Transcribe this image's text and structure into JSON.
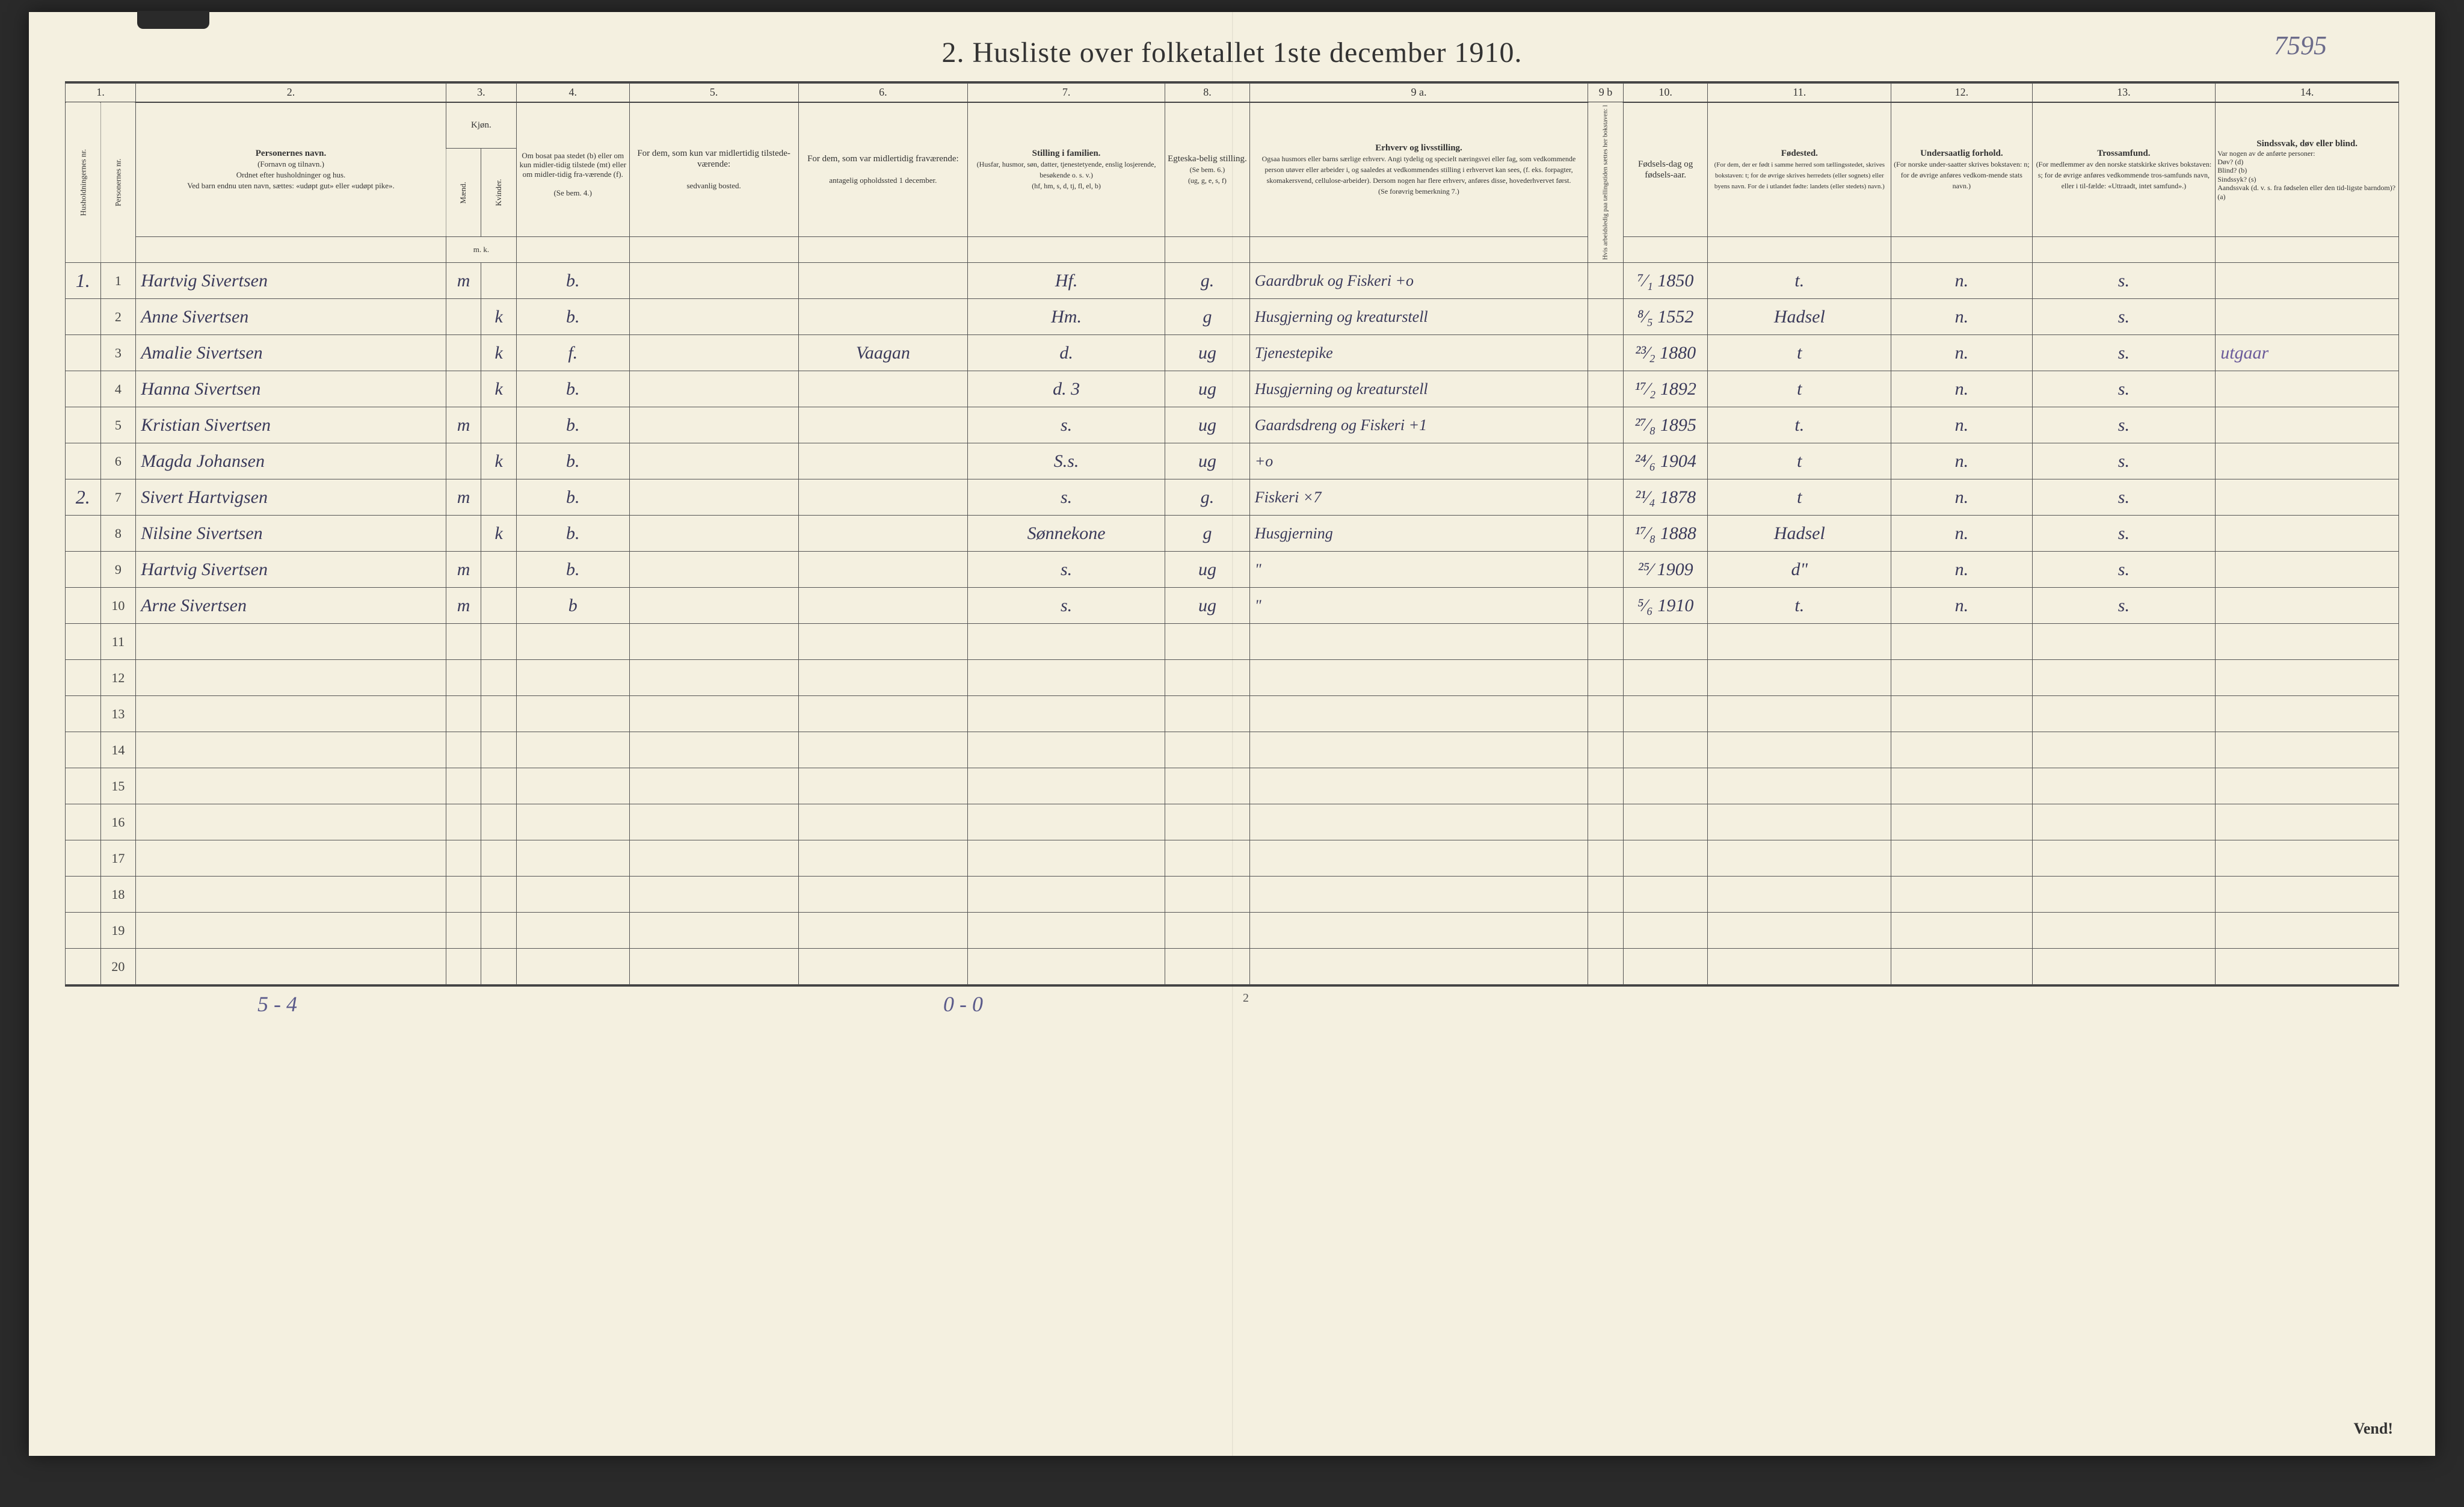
{
  "page": {
    "title": "2.  Husliste over folketallet 1ste december 1910.",
    "topright_note": "7595",
    "footer_left": "5 - 4",
    "footer_center": "0 - 0",
    "footer_pagenum": "2",
    "vend": "Vend!"
  },
  "colors": {
    "paper": "#f4f0e0",
    "ink": "#333333",
    "handwriting": "#3a3a5a",
    "pencil": "#6a5a9a",
    "border": "#555555"
  },
  "typography": {
    "title_fontsize": 48,
    "header_fontsize": 15,
    "subheader_fontsize": 13,
    "handwriting_fontsize": 30,
    "rownum_fontsize": 22
  },
  "columns_numbers": [
    "1.",
    "",
    "2.",
    "3.",
    "",
    "4.",
    "5.",
    "6.",
    "7.",
    "8.",
    "9 a.",
    "9 b",
    "10.",
    "11.",
    "12.",
    "13.",
    "14."
  ],
  "headers": {
    "h1": "",
    "h1b": "",
    "h2_main": "Personernes navn.",
    "h2_sub": "(Fornavn og tilnavn.)\nOrdnet efter husholdninger og hus.\nVed barn endnu uten navn, sættes: «udøpt gut» eller «udøpt pike».",
    "h3_main": "Kjøn.",
    "h3a": "Mænd.",
    "h3b": "Kvinder.",
    "h3_foot": "m.   k.",
    "h4_main": "Om bosat paa stedet (b) eller om kun midler-tidig tilstede (mt) eller om midler-tidig fra-værende (f).",
    "h4_sub": "(Se bem. 4.)",
    "h5_main": "For dem, som kun var midlertidig tilstede-værende:",
    "h5_sub": "sedvanlig bosted.",
    "h6_main": "For dem, som var midlertidig fraværende:",
    "h6_sub": "antagelig opholdssted 1 december.",
    "h7_main": "Stilling i familien.",
    "h7_sub": "(Husfar, husmor, søn, datter, tjenestetyende, enslig losjerende, besøkende o. s. v.)\n(hf, hm, s, d, tj, fl, el, b)",
    "h8_main": "Egteska-belig stilling.",
    "h8_sub": "(Se bem. 6.)\n(ug, g, e, s, f)",
    "h9_main": "Erhverv og livsstilling.",
    "h9_sub": "Ogsaa husmors eller barns særlige erhverv. Angi tydelig og specielt næringsvei eller fag, som vedkommende person utøver eller arbeider i, og saaledes at vedkommendes stilling i erhvervet kan sees, (f. eks. forpagter, skomakersvend, cellulose-arbeider). Dersom nogen har flere erhverv, anføres disse, hovederhvervet først.\n(Se forøvrig bemerkning 7.)",
    "h9b": "Hvis arbeidsledig paa tællingstiden sættes her bokstaven: l",
    "h10_main": "Fødsels-dag og fødsels-aar.",
    "h11_main": "Fødested.",
    "h11_sub": "(For dem, der er født i samme herred som tællingsstedet, skrives bokstaven: t; for de øvrige skrives herredets (eller sognets) eller byens navn. For de i utlandet fødte: landets (eller stedets) navn.)",
    "h12_main": "Undersaatlig forhold.",
    "h12_sub": "(For norske under-saatter skrives bokstaven: n; for de øvrige anføres vedkom-mende stats navn.)",
    "h13_main": "Trossamfund.",
    "h13_sub": "(For medlemmer av den norske statskirke skrives bokstaven: s; for de øvrige anføres vedkommende tros-samfunds navn, eller i til-fælde: «Uttraadt, intet samfund».)",
    "h14_main": "Sindssvak, døv eller blind.",
    "h14_sub": "Var nogen av de anførte personer:\nDøv?          (d)\nBlind?         (b)\nSindssyk?   (s)\nAandssvak (d. v. s. fra fødselen eller den tid-ligste barndom)? (a)",
    "side_a": "Husholdningernes nr.",
    "side_b": "Personernes nr."
  },
  "rows": [
    {
      "hh": "1.",
      "num": "1",
      "name": "Hartvig Sivertsen",
      "sex_m": "m",
      "sex_k": "",
      "res": "b.",
      "away": "",
      "absent": "",
      "fam": "Hf.",
      "mar": "g.",
      "occ": "Gaardbruk og Fiskeri   +o",
      "led": "",
      "birth": "⁷⁄₁ 1850",
      "born": "t.",
      "nat": "n.",
      "rel": "s.",
      "note": ""
    },
    {
      "hh": "",
      "num": "2",
      "name": "Anne Sivertsen",
      "sex_m": "",
      "sex_k": "k",
      "res": "b.",
      "away": "",
      "absent": "",
      "fam": "Hm.",
      "mar": "g",
      "occ": "Husgjerning og kreaturstell",
      "led": "",
      "birth": "⁸⁄₅ 1552",
      "born": "Hadsel",
      "nat": "n.",
      "rel": "s.",
      "note": ""
    },
    {
      "hh": "",
      "num": "3",
      "name": "Amalie Sivertsen",
      "sex_m": "",
      "sex_k": "k",
      "res": "f.",
      "away": "",
      "absent": "Vaagan",
      "fam": "d.",
      "mar": "ug",
      "occ": "Tjenestepike",
      "led": "",
      "birth": "²³⁄₂ 1880",
      "born": "t",
      "nat": "n.",
      "rel": "s.",
      "note": "utgaar"
    },
    {
      "hh": "",
      "num": "4",
      "name": "Hanna Sivertsen",
      "sex_m": "",
      "sex_k": "k",
      "res": "b.",
      "away": "",
      "absent": "",
      "fam": "d.   3",
      "mar": "ug",
      "occ": "Husgjerning og kreaturstell",
      "led": "",
      "birth": "¹⁷⁄₂ 1892",
      "born": "t",
      "nat": "n.",
      "rel": "s.",
      "note": ""
    },
    {
      "hh": "",
      "num": "5",
      "name": "Kristian Sivertsen",
      "sex_m": "m",
      "sex_k": "",
      "res": "b.",
      "away": "",
      "absent": "",
      "fam": "s.",
      "mar": "ug",
      "occ": "Gaardsdreng og Fiskeri   +1",
      "led": "",
      "birth": "²⁷⁄₈ 1895",
      "born": "t.",
      "nat": "n.",
      "rel": "s.",
      "note": ""
    },
    {
      "hh": "",
      "num": "6",
      "name": "Magda Johansen",
      "sex_m": "",
      "sex_k": "k",
      "res": "b.",
      "away": "",
      "absent": "",
      "fam": "S.s.",
      "mar": "ug",
      "occ": "+o",
      "led": "",
      "birth": "²⁴⁄₆ 1904",
      "born": "t",
      "nat": "n.",
      "rel": "s.",
      "note": ""
    },
    {
      "hh": "2.",
      "num": "7",
      "name": "Sivert Hartvigsen",
      "sex_m": "m",
      "sex_k": "",
      "res": "b.",
      "away": "",
      "absent": "",
      "fam": "s.",
      "mar": "g.",
      "occ": "Fiskeri   ×7",
      "led": "",
      "birth": "²¹⁄₄ 1878",
      "born": "t",
      "nat": "n.",
      "rel": "s.",
      "note": ""
    },
    {
      "hh": "",
      "num": "8",
      "name": "Nilsine Sivertsen",
      "sex_m": "",
      "sex_k": "k",
      "res": "b.",
      "away": "",
      "absent": "",
      "fam": "Sønnekone",
      "mar": "g",
      "occ": "Husgjerning",
      "led": "",
      "birth": "¹⁷⁄₈ 1888",
      "born": "Hadsel",
      "nat": "n.",
      "rel": "s.",
      "note": ""
    },
    {
      "hh": "",
      "num": "9",
      "name": "Hartvig Sivertsen",
      "sex_m": "m",
      "sex_k": "",
      "res": "b.",
      "away": "",
      "absent": "",
      "fam": "s.",
      "mar": "ug",
      "occ": "\"",
      "led": "",
      "birth": "²⁵⁄ 1909",
      "born": "d\"",
      "nat": "n.",
      "rel": "s.",
      "note": ""
    },
    {
      "hh": "",
      "num": "10",
      "name": "Arne Sivertsen",
      "sex_m": "m",
      "sex_k": "",
      "res": "b",
      "away": "",
      "absent": "",
      "fam": "s.",
      "mar": "ug",
      "occ": "\"",
      "led": "",
      "birth": "⁵⁄₆ 1910",
      "born": "t.",
      "nat": "n.",
      "rel": "s.",
      "note": ""
    },
    {
      "hh": "",
      "num": "11",
      "name": "",
      "sex_m": "",
      "sex_k": "",
      "res": "",
      "away": "",
      "absent": "",
      "fam": "",
      "mar": "",
      "occ": "",
      "led": "",
      "birth": "",
      "born": "",
      "nat": "",
      "rel": "",
      "note": ""
    },
    {
      "hh": "",
      "num": "12",
      "name": "",
      "sex_m": "",
      "sex_k": "",
      "res": "",
      "away": "",
      "absent": "",
      "fam": "",
      "mar": "",
      "occ": "",
      "led": "",
      "birth": "",
      "born": "",
      "nat": "",
      "rel": "",
      "note": ""
    },
    {
      "hh": "",
      "num": "13",
      "name": "",
      "sex_m": "",
      "sex_k": "",
      "res": "",
      "away": "",
      "absent": "",
      "fam": "",
      "mar": "",
      "occ": "",
      "led": "",
      "birth": "",
      "born": "",
      "nat": "",
      "rel": "",
      "note": ""
    },
    {
      "hh": "",
      "num": "14",
      "name": "",
      "sex_m": "",
      "sex_k": "",
      "res": "",
      "away": "",
      "absent": "",
      "fam": "",
      "mar": "",
      "occ": "",
      "led": "",
      "birth": "",
      "born": "",
      "nat": "",
      "rel": "",
      "note": ""
    },
    {
      "hh": "",
      "num": "15",
      "name": "",
      "sex_m": "",
      "sex_k": "",
      "res": "",
      "away": "",
      "absent": "",
      "fam": "",
      "mar": "",
      "occ": "",
      "led": "",
      "birth": "",
      "born": "",
      "nat": "",
      "rel": "",
      "note": ""
    },
    {
      "hh": "",
      "num": "16",
      "name": "",
      "sex_m": "",
      "sex_k": "",
      "res": "",
      "away": "",
      "absent": "",
      "fam": "",
      "mar": "",
      "occ": "",
      "led": "",
      "birth": "",
      "born": "",
      "nat": "",
      "rel": "",
      "note": ""
    },
    {
      "hh": "",
      "num": "17",
      "name": "",
      "sex_m": "",
      "sex_k": "",
      "res": "",
      "away": "",
      "absent": "",
      "fam": "",
      "mar": "",
      "occ": "",
      "led": "",
      "birth": "",
      "born": "",
      "nat": "",
      "rel": "",
      "note": ""
    },
    {
      "hh": "",
      "num": "18",
      "name": "",
      "sex_m": "",
      "sex_k": "",
      "res": "",
      "away": "",
      "absent": "",
      "fam": "",
      "mar": "",
      "occ": "",
      "led": "",
      "birth": "",
      "born": "",
      "nat": "",
      "rel": "",
      "note": ""
    },
    {
      "hh": "",
      "num": "19",
      "name": "",
      "sex_m": "",
      "sex_k": "",
      "res": "",
      "away": "",
      "absent": "",
      "fam": "",
      "mar": "",
      "occ": "",
      "led": "",
      "birth": "",
      "born": "",
      "nat": "",
      "rel": "",
      "note": ""
    },
    {
      "hh": "",
      "num": "20",
      "name": "",
      "sex_m": "",
      "sex_k": "",
      "res": "",
      "away": "",
      "absent": "",
      "fam": "",
      "mar": "",
      "occ": "",
      "led": "",
      "birth": "",
      "born": "",
      "nat": "",
      "rel": "",
      "note": ""
    }
  ]
}
